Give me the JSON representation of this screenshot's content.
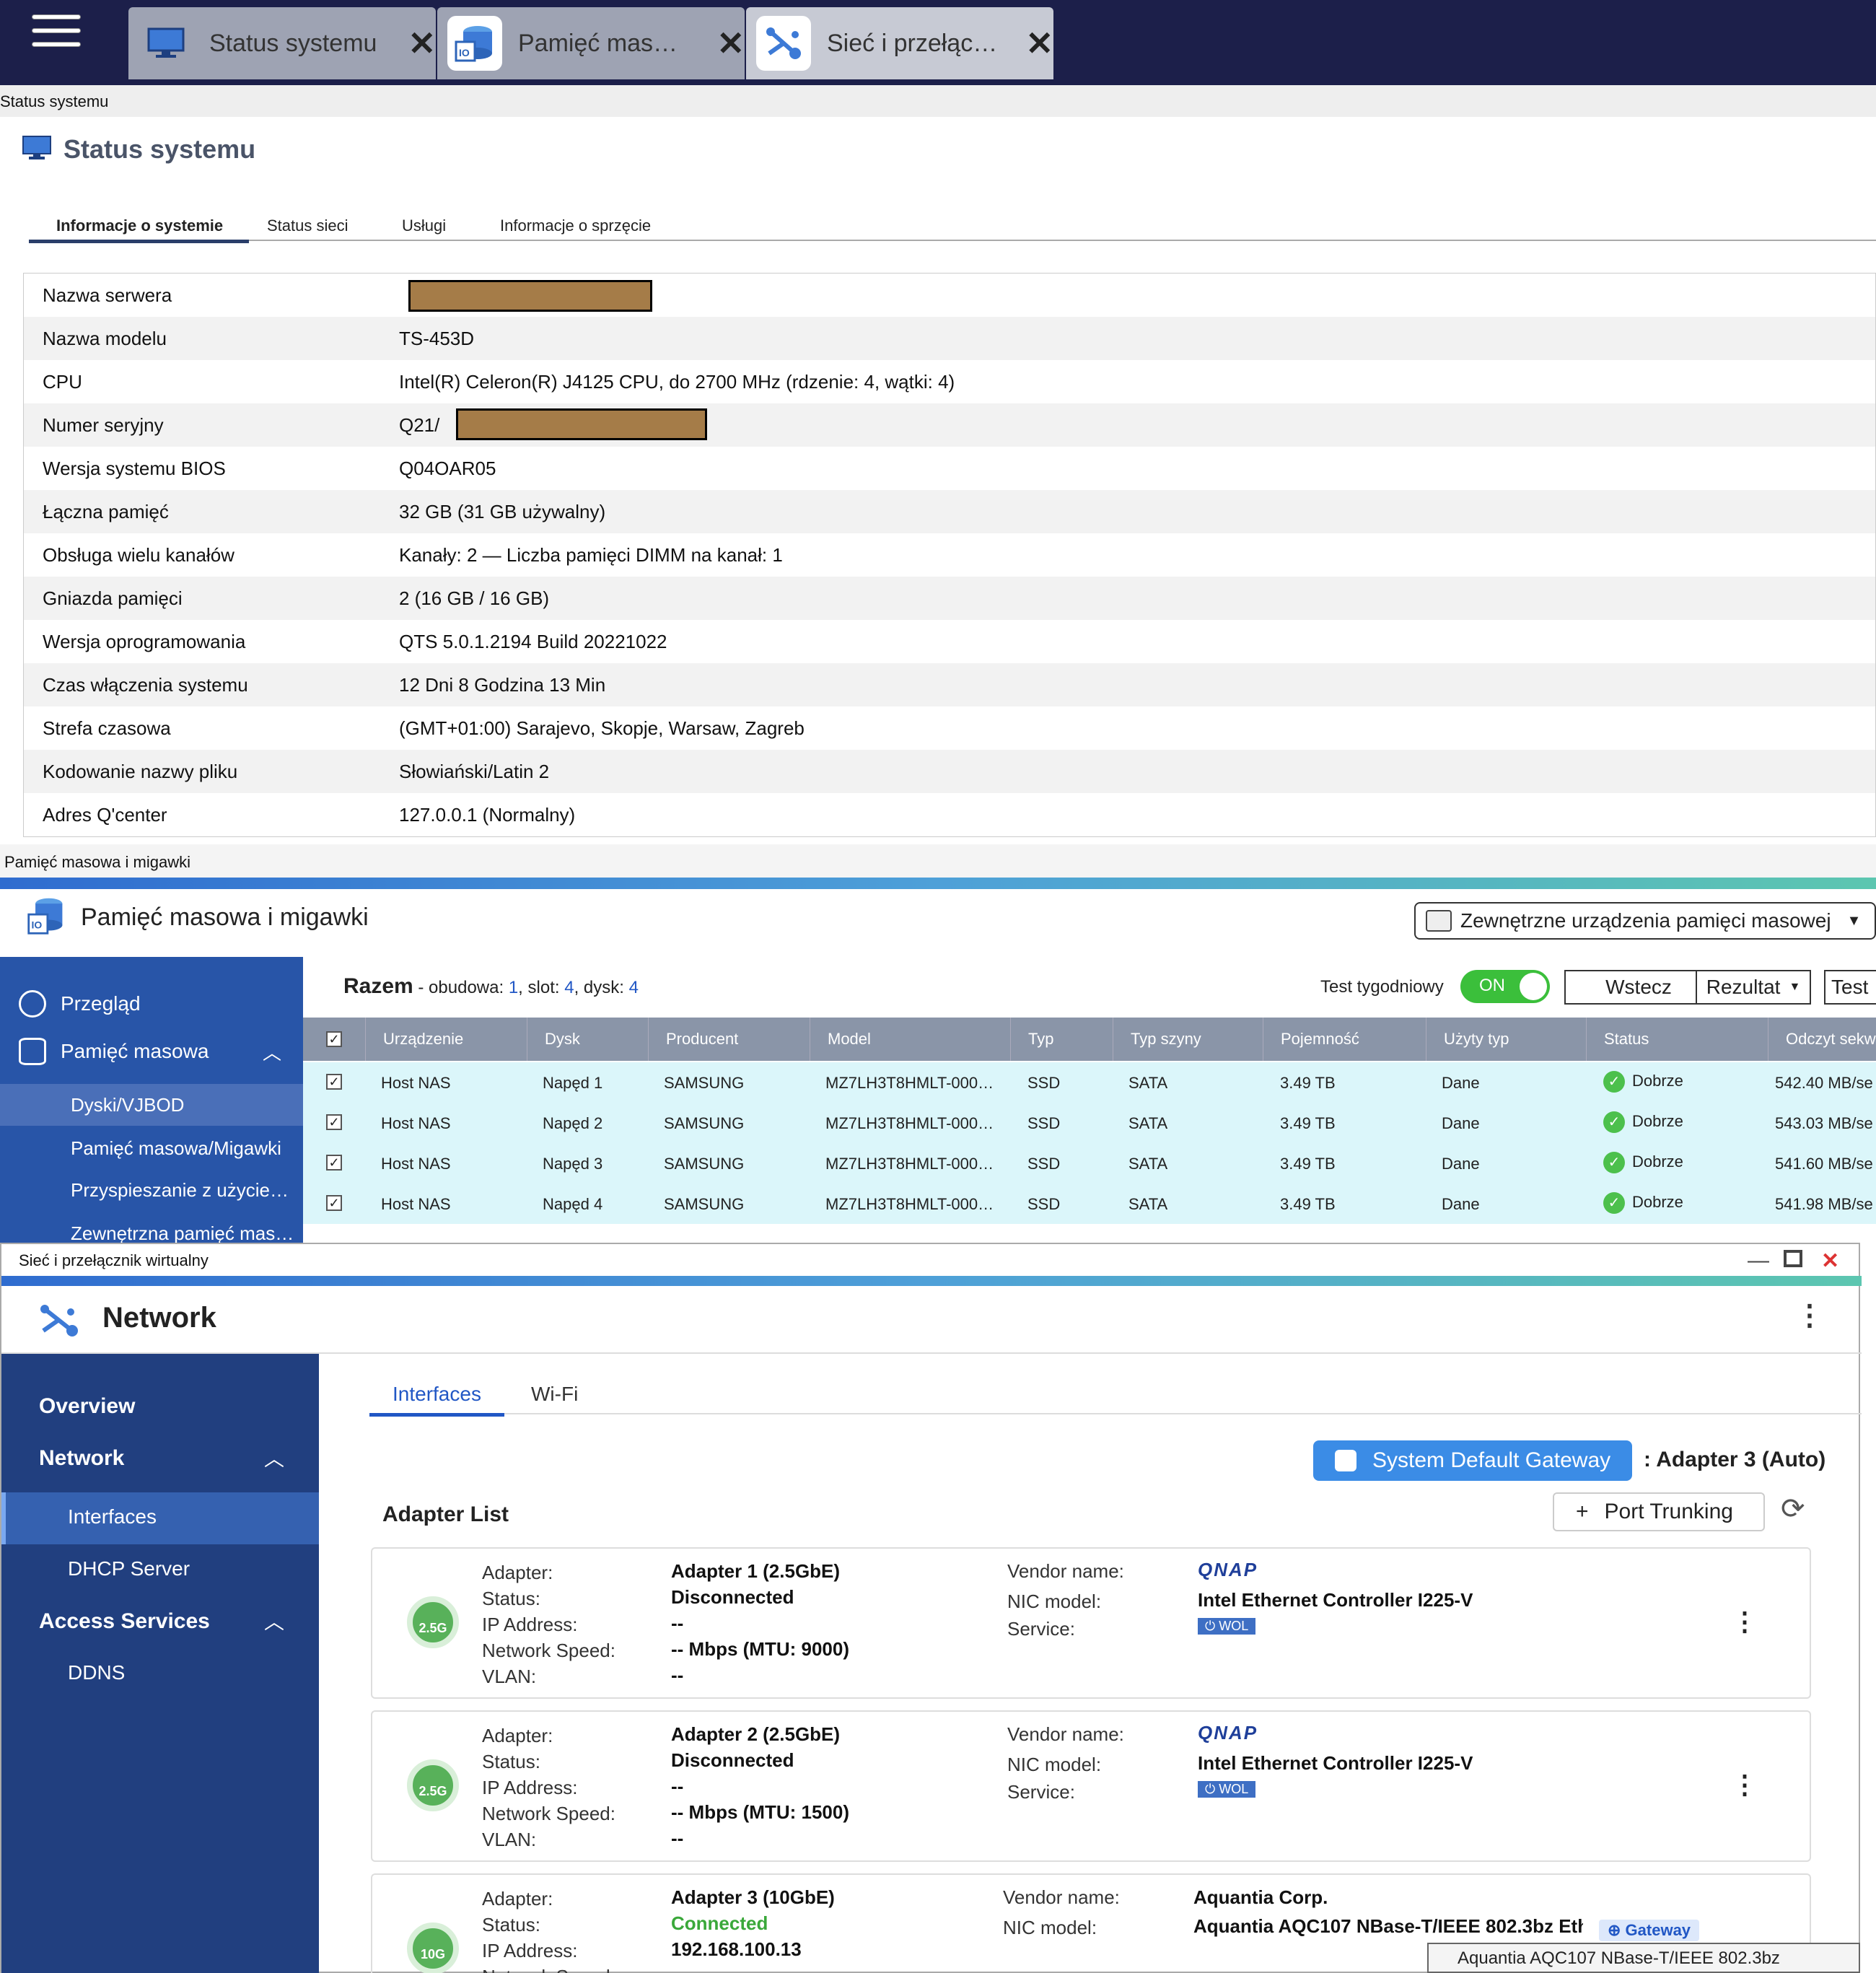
{
  "taskbar": {
    "tabs": [
      {
        "label": "Status systemu",
        "icon": "monitor-icon"
      },
      {
        "label": "Pamięć mas…",
        "icon": "storage-icon"
      },
      {
        "label": "Sieć i przełąc…",
        "icon": "network-icon"
      }
    ]
  },
  "status_window": {
    "crumb": "Status systemu",
    "title": "Status systemu",
    "tabs": [
      "Informacje o systemie",
      "Status sieci",
      "Usługi",
      "Informacje o sprzęcie"
    ],
    "rows": [
      {
        "k": "Nazwa serwera",
        "v": ""
      },
      {
        "k": "Nazwa modelu",
        "v": "TS-453D"
      },
      {
        "k": "CPU",
        "v": "Intel(R) Celeron(R) J4125 CPU, do 2700 MHz (rdzenie: 4, wątki: 4)"
      },
      {
        "k": "Numer seryjny",
        "v": "Q21/"
      },
      {
        "k": "Wersja systemu BIOS",
        "v": "Q04OAR05"
      },
      {
        "k": "Łączna pamięć",
        "v": "32 GB (31 GB używalny)"
      },
      {
        "k": "Obsługa wielu kanałów",
        "v": "Kanały: 2 — Liczba pamięci DIMM na kanał: 1"
      },
      {
        "k": "Gniazda pamięci",
        "v": "2 (16 GB / 16 GB)"
      },
      {
        "k": "Wersja oprogramowania",
        "v": "QTS 5.0.1.2194 Build 20221022"
      },
      {
        "k": "Czas włączenia systemu",
        "v": "12 Dni 8 Godzina 13 Min"
      },
      {
        "k": "Strefa czasowa",
        "v": "(GMT+01:00) Sarajevo, Skopje, Warsaw, Zagreb"
      },
      {
        "k": "Kodowanie nazwy pliku",
        "v": "Słowiański/Latin 2"
      },
      {
        "k": "Adres Q'center",
        "v": "127.0.0.1 (Normalny)"
      }
    ]
  },
  "storage_window": {
    "crumb": "Pamięć masowa i migawki",
    "title": "Pamięć masowa i migawki",
    "external_button": "Zewnętrzne urządzenia pamięci masowej",
    "sidebar": {
      "items": [
        "Przegląd",
        "Pamięć masowa"
      ],
      "subitems": [
        "Dyski/VJBOD",
        "Pamięć masowa/Migawki",
        "Przyspieszanie z użyciem…",
        "Zewnętrzna pamięć maso…"
      ]
    },
    "summary": {
      "label": "Razem",
      "enclosure_label": "- obudowa:",
      "enclosure": "1",
      "slot_label": ", slot:",
      "slot": "4",
      "disk_label": ", dysk:",
      "disk": "4"
    },
    "weekly_test_label": "Test tygodniowy",
    "toggle": "ON",
    "buttons": [
      "Wstecz",
      "Rezultat",
      "Test"
    ],
    "columns": [
      "Urządzenie",
      "Dysk",
      "Producent",
      "Model",
      "Typ",
      "Typ szyny",
      "Pojemność",
      "Użyty typ",
      "Status",
      "Odczyt sekw"
    ],
    "disks": [
      {
        "device": "Host NAS",
        "disk": "Napęd 1",
        "vendor": "SAMSUNG",
        "model": "MZ7LH3T8HMLT-000…",
        "type": "SSD",
        "bus": "SATA",
        "capacity": "3.49 TB",
        "use": "Dane",
        "status": "Dobrze",
        "read": "542.40 MB/se"
      },
      {
        "device": "Host NAS",
        "disk": "Napęd 2",
        "vendor": "SAMSUNG",
        "model": "MZ7LH3T8HMLT-000…",
        "type": "SSD",
        "bus": "SATA",
        "capacity": "3.49 TB",
        "use": "Dane",
        "status": "Dobrze",
        "read": "543.03 MB/se"
      },
      {
        "device": "Host NAS",
        "disk": "Napęd 3",
        "vendor": "SAMSUNG",
        "model": "MZ7LH3T8HMLT-000…",
        "type": "SSD",
        "bus": "SATA",
        "capacity": "3.49 TB",
        "use": "Dane",
        "status": "Dobrze",
        "read": "541.60 MB/se"
      },
      {
        "device": "Host NAS",
        "disk": "Napęd 4",
        "vendor": "SAMSUNG",
        "model": "MZ7LH3T8HMLT-000…",
        "type": "SSD",
        "bus": "SATA",
        "capacity": "3.49 TB",
        "use": "Dane",
        "status": "Dobrze",
        "read": "541.98 MB/se"
      }
    ]
  },
  "network_window": {
    "caption": "Sieć i przełącznik wirtualny",
    "title": "Network",
    "sidebar": {
      "overview": "Overview",
      "network": "Network",
      "interfaces": "Interfaces",
      "dhcp": "DHCP Server",
      "access": "Access Services",
      "ddns": "DDNS"
    },
    "tabs": [
      "Interfaces",
      "Wi-Fi"
    ],
    "gateway_button": "System Default Gateway",
    "gateway_value": ": Adapter 3 (Auto)",
    "adapter_list": "Adapter List",
    "port_trunking": "Port Trunking",
    "labels": {
      "adapter": "Adapter:",
      "status": "Status:",
      "ip": "IP Address:",
      "speed": "Network Speed:",
      "vlan": "VLAN:",
      "vendor": "Vendor name:",
      "nic": "NIC model:",
      "service": "Service:"
    },
    "adapters": [
      {
        "badge": "2.5G",
        "name": "Adapter 1 (2.5GbE)",
        "status": "Disconnected",
        "ip": "--",
        "speed": "-- Mbps (MTU: 9000)",
        "vlan": "--",
        "vendor": "QNAP",
        "nic": "Intel Ethernet Controller I225-V",
        "service": "WOL"
      },
      {
        "badge": "2.5G",
        "name": "Adapter 2 (2.5GbE)",
        "status": "Disconnected",
        "ip": "--",
        "speed": "-- Mbps (MTU: 1500)",
        "vlan": "--",
        "vendor": "QNAP",
        "nic": "Intel Ethernet Controller I225-V",
        "service": "WOL"
      },
      {
        "badge": "10G",
        "name": "Adapter 3 (10GbE)",
        "status": "Connected",
        "ip": "192.168.100.13",
        "vendor": "Aquantia Corp.",
        "nic": "Aquantia AQC107 NBase-T/IEEE 802.3bz Ethe",
        "service": "Gateway"
      }
    ],
    "tooltip": "Aquantia AQC107 NBase-T/IEEE 802.3bz"
  },
  "colors": {
    "taskbar": "#1c1f4a",
    "sidebar_storage": "#2855a8",
    "sidebar_network": "#213f7f",
    "accent": "#2157c5",
    "ok": "#4cc04c",
    "disk_row": "#dbf6fa"
  }
}
